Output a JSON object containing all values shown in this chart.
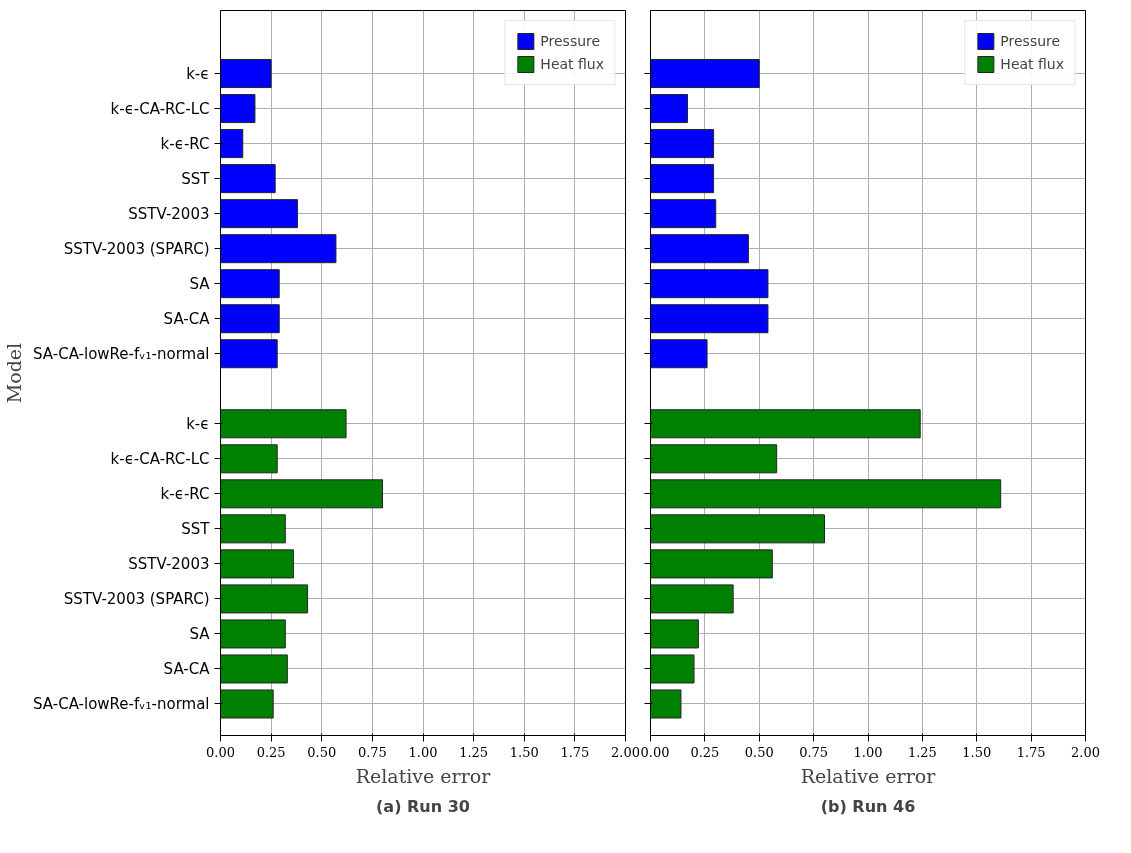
{
  "chart_data": [
    {
      "type": "bar",
      "orientation": "horizontal",
      "title": "(a) Run 30",
      "xlabel": "Relative error",
      "ylabel": "Model",
      "categories": [
        "k-ϵ",
        "k-ϵ-CA-RC-LC",
        "k-ϵ-RC",
        "SST",
        "SSTV-2003",
        "SSTV-2003 (SPARC)",
        "SA",
        "SA-CA",
        "SA-CA-lowRe-fᵥ₁-normal",
        null,
        "k-ϵ",
        "k-ϵ-CA-RC-LC",
        "k-ϵ-RC",
        "SST",
        "SSTV-2003",
        "SSTV-2003 (SPARC)",
        "SA",
        "SA-CA",
        "SA-CA-lowRe-fᵥ₁-normal"
      ],
      "series": [
        {
          "name": "Pressure",
          "color": "#0000ff",
          "values": [
            0.25,
            0.17,
            0.11,
            0.27,
            0.38,
            0.57,
            0.29,
            0.29,
            0.28,
            null,
            null,
            null,
            null,
            null,
            null,
            null,
            null,
            null,
            null
          ]
        },
        {
          "name": "Heat flux",
          "color": "#008000",
          "values": [
            null,
            null,
            null,
            null,
            null,
            null,
            null,
            null,
            null,
            null,
            0.62,
            0.28,
            0.8,
            0.32,
            0.36,
            0.43,
            0.32,
            0.33,
            0.26
          ]
        }
      ],
      "xlim": [
        0,
        2
      ],
      "xticks": [
        {
          "value": 0,
          "label": "0.00"
        },
        0.25,
        {
          "value": 0.5,
          "label": "0.50"
        },
        0.75,
        {
          "value": 1,
          "label": "1.00"
        },
        1.25,
        {
          "value": 1.5,
          "label": "1.50"
        },
        1.75,
        {
          "value": 2,
          "label": "2.00"
        }
      ],
      "grid": true,
      "legend": "top right"
    },
    {
      "type": "bar",
      "orientation": "horizontal",
      "title": "(b) Run 46",
      "xlabel": "Relative error",
      "categories": [
        null,
        null,
        null,
        null,
        null,
        null,
        null,
        null,
        null,
        null,
        null,
        null,
        null,
        null,
        null,
        null,
        null,
        null,
        null
      ],
      "series": [
        {
          "name": "Pressure",
          "color": "#0000ff",
          "values": [
            0.5,
            0.17,
            0.29,
            0.29,
            0.3,
            0.45,
            0.54,
            0.54,
            0.26,
            null,
            null,
            null,
            null,
            null,
            null,
            null,
            null,
            null,
            null
          ]
        },
        {
          "name": "Heat flux",
          "color": "#008000",
          "values": [
            null,
            null,
            null,
            null,
            null,
            null,
            null,
            null,
            null,
            null,
            1.24,
            0.58,
            1.61,
            0.8,
            0.56,
            0.38,
            0.22,
            0.2,
            0.14
          ]
        }
      ],
      "xlim": [
        0,
        2
      ],
      "xticks": [
        {
          "value": 0,
          "label": "0.00"
        },
        0.25,
        {
          "value": 0.5,
          "label": "0.50"
        },
        0.75,
        {
          "value": 1,
          "label": "1.00"
        },
        1.25,
        {
          "value": 1.5,
          "label": "1.50"
        },
        1.75,
        {
          "value": 2,
          "label": "2.00"
        }
      ],
      "grid": true,
      "legend": "top right",
      "tick_labels": "x"
    }
  ]
}
